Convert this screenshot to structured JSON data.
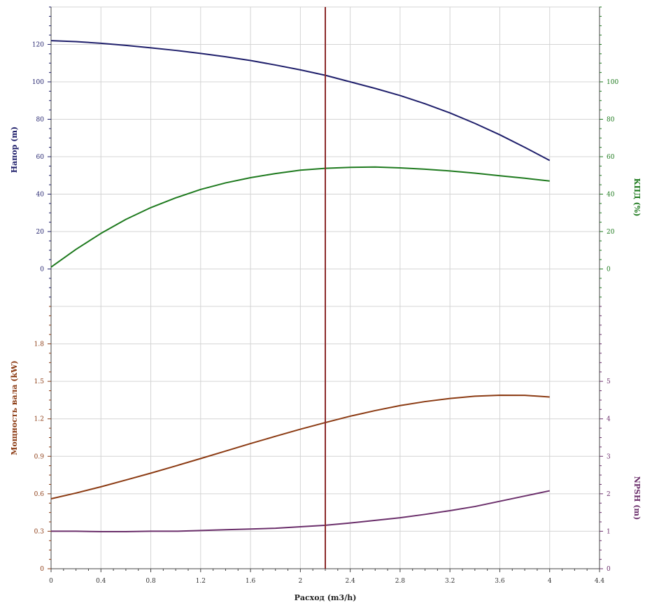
{
  "chart_data": {
    "type": "line",
    "x_axis": {
      "label": "Расход (m3/h)",
      "range": [
        0,
        4.4
      ],
      "ticks": [
        0,
        0.4,
        0.8,
        1.2,
        1.6,
        2,
        2.4,
        2.8,
        3.2,
        3.6,
        4,
        4.4
      ],
      "tick_labels": [
        "0",
        "0.4",
        "0.8",
        "1.2",
        "1.6",
        "2",
        "2.4",
        "2.8",
        "3.2",
        "3.6",
        "4",
        "4.4"
      ]
    },
    "operating_point": {
      "x": 2.2,
      "color": "#8b2a2a"
    },
    "top_panel": {
      "left_axis": {
        "label": "Напор (m)",
        "color": "#1f1f6b",
        "range": [
          -20,
          140
        ],
        "ticks": [
          0,
          20,
          40,
          60,
          80,
          100,
          120
        ],
        "tick_labels": [
          "0",
          "20",
          "40",
          "60",
          "80",
          "100",
          "120"
        ]
      },
      "right_axis": {
        "label": "КПД (%)",
        "color": "#1e7a1e",
        "range": [
          -20,
          140
        ],
        "ticks": [
          0,
          20,
          40,
          60,
          80,
          100
        ],
        "tick_labels": [
          "0",
          "20",
          "40",
          "60",
          "80",
          "100"
        ]
      },
      "series": [
        {
          "key": "head",
          "axis": "left",
          "color": "#1f1f6b",
          "x": [
            0,
            0.2,
            0.4,
            0.6,
            0.8,
            1.0,
            1.2,
            1.4,
            1.6,
            1.8,
            2.0,
            2.2,
            2.4,
            2.6,
            2.8,
            3.0,
            3.2,
            3.4,
            3.6,
            3.8,
            4.0
          ],
          "y": [
            122,
            121.5,
            120.6,
            119.5,
            118.2,
            116.8,
            115.2,
            113.4,
            111.4,
            109.0,
            106.4,
            103.5,
            100.0,
            96.5,
            92.7,
            88.3,
            83.4,
            77.8,
            71.7,
            65.0,
            58
          ]
        },
        {
          "key": "efficiency",
          "axis": "right",
          "color": "#1e7a1e",
          "x": [
            0,
            0.2,
            0.4,
            0.6,
            0.8,
            1.0,
            1.2,
            1.4,
            1.6,
            1.8,
            2.0,
            2.2,
            2.4,
            2.6,
            2.8,
            3.0,
            3.2,
            3.4,
            3.6,
            3.8,
            4.0
          ],
          "y": [
            1,
            10.5,
            19,
            26.5,
            32.8,
            38,
            42.5,
            46,
            48.8,
            51,
            52.8,
            53.8,
            54.3,
            54.5,
            54,
            53.3,
            52.4,
            51.2,
            49.8,
            48.5,
            47
          ]
        }
      ]
    },
    "bottom_panel": {
      "left_axis": {
        "label": "Мощность вала (kW)",
        "color": "#8b3a12",
        "range": [
          0,
          2.1
        ],
        "ticks": [
          0,
          0.3,
          0.6,
          0.9,
          1.2,
          1.5,
          1.8
        ],
        "tick_labels": [
          "0",
          "0.3",
          "0.6",
          "0.9",
          "1.2",
          "1.5",
          "1.8"
        ]
      },
      "right_axis": {
        "label": "NPSH (m)",
        "color": "#6b2f6b",
        "range": [
          0,
          7
        ],
        "ticks": [
          0,
          1,
          2,
          3,
          4,
          5
        ],
        "tick_labels": [
          "0",
          "1",
          "2",
          "3",
          "4",
          "5"
        ]
      },
      "series": [
        {
          "key": "power",
          "axis": "left",
          "color": "#8b3a12",
          "x": [
            0,
            0.2,
            0.4,
            0.6,
            0.8,
            1.0,
            1.2,
            1.4,
            1.6,
            1.8,
            2.0,
            2.2,
            2.4,
            2.6,
            2.8,
            3.0,
            3.2,
            3.4,
            3.6,
            3.8,
            4.0
          ],
          "y": [
            0.56,
            0.606,
            0.656,
            0.71,
            0.765,
            0.823,
            0.882,
            0.942,
            1.002,
            1.06,
            1.117,
            1.17,
            1.221,
            1.266,
            1.306,
            1.338,
            1.363,
            1.381,
            1.389,
            1.388,
            1.375
          ]
        },
        {
          "key": "npsh",
          "axis": "right",
          "color": "#6b2f6b",
          "x": [
            0,
            0.2,
            0.4,
            0.6,
            0.8,
            1.0,
            1.2,
            1.4,
            1.6,
            1.8,
            2.0,
            2.2,
            2.4,
            2.6,
            2.8,
            3.0,
            3.2,
            3.4,
            3.6,
            3.8,
            4.0
          ],
          "y": [
            1.0,
            1.0,
            0.99,
            0.99,
            1.0,
            1.0,
            1.02,
            1.04,
            1.06,
            1.08,
            1.12,
            1.16,
            1.22,
            1.29,
            1.36,
            1.45,
            1.55,
            1.66,
            1.8,
            1.94,
            2.08
          ]
        }
      ]
    },
    "grid": true,
    "legend": "none"
  }
}
